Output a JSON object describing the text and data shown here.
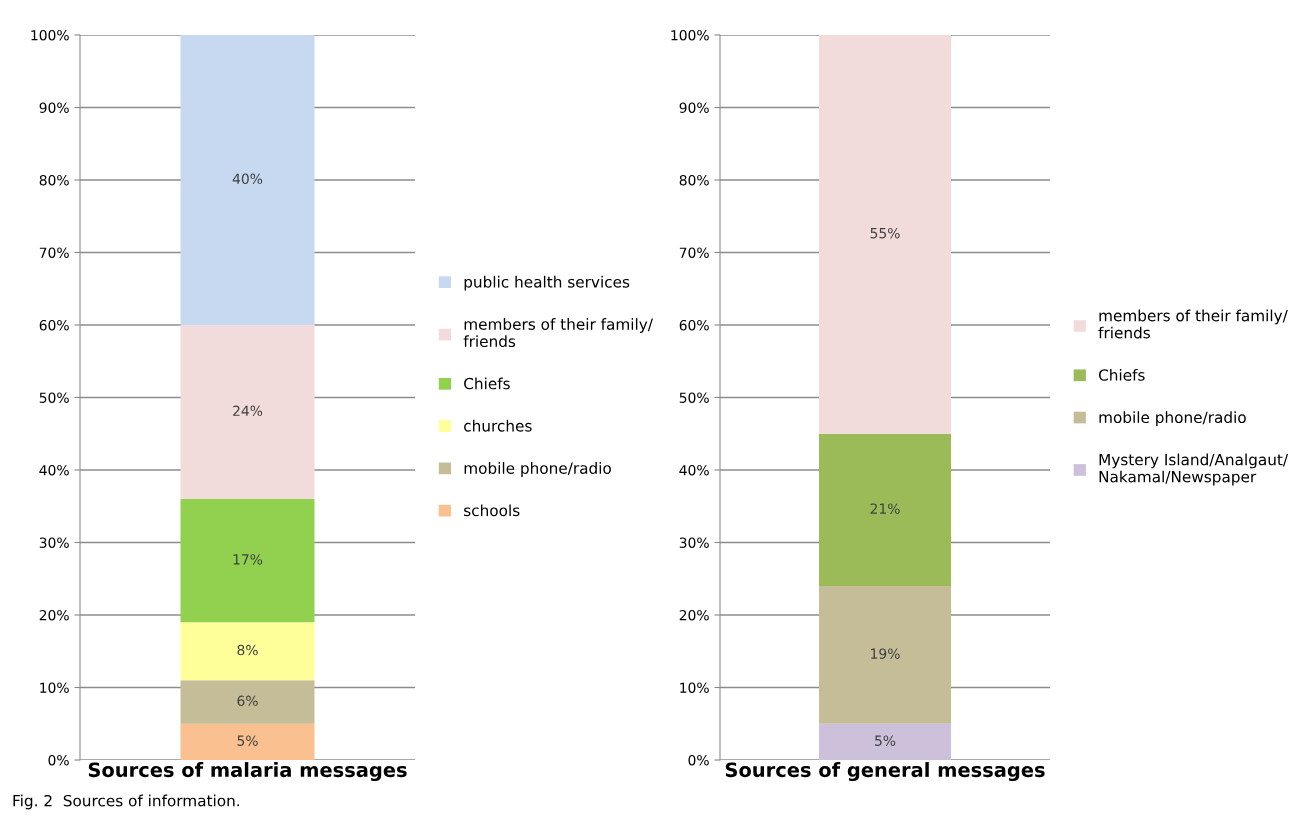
{
  "chart_data": [
    {
      "type": "bar",
      "stacked": true,
      "categories": [
        null
      ],
      "xlabel": "Sources of malaria messages",
      "ylim": [
        0,
        100
      ],
      "yticks": [
        {
          "value": 0,
          "label": "0%"
        },
        {
          "value": 10,
          "label": "10%"
        },
        {
          "value": 20,
          "label": "20%"
        },
        {
          "value": 30,
          "label": "30%"
        },
        {
          "value": 40,
          "label": "40%"
        },
        {
          "value": 50,
          "label": "50%"
        },
        {
          "value": 60,
          "label": "60%"
        },
        {
          "value": 70,
          "label": "70%"
        },
        {
          "value": 80,
          "label": "80%"
        },
        {
          "value": 90,
          "label": "90%"
        },
        {
          "value": 100,
          "label": "100%"
        }
      ],
      "grid": "y",
      "legend": "right",
      "series": [
        {
          "name": "schools",
          "color": "#fac090",
          "values": [
            5
          ],
          "value_labels": [
            "5%"
          ]
        },
        {
          "name": "mobile phone/radio",
          "color": "#c4bd97",
          "values": [
            6
          ],
          "value_labels": [
            "6%"
          ]
        },
        {
          "name": "churches",
          "color": "#ffff99",
          "values": [
            8
          ],
          "value_labels": [
            "8%"
          ]
        },
        {
          "name": "Chiefs",
          "color": "#92d050",
          "values": [
            17
          ],
          "value_labels": [
            "17%"
          ]
        },
        {
          "name": "members of their family/ friends",
          "color": "#f2dcdb",
          "values": [
            24
          ],
          "value_labels": [
            "24%"
          ]
        },
        {
          "name": "public health services",
          "color": "#c6d9f1",
          "values": [
            40
          ],
          "value_labels": [
            "40%"
          ]
        }
      ],
      "annotations": [
        "Fig. 2  Sources of information."
      ]
    },
    {
      "type": "bar",
      "stacked": true,
      "categories": [
        null
      ],
      "xlabel": "Sources of general messages",
      "ylim": [
        0,
        100
      ],
      "yticks": [
        {
          "value": 0,
          "label": "0%"
        },
        {
          "value": 10,
          "label": "10%"
        },
        {
          "value": 20,
          "label": "20%"
        },
        {
          "value": 30,
          "label": "30%"
        },
        {
          "value": 40,
          "label": "40%"
        },
        {
          "value": 50,
          "label": "50%"
        },
        {
          "value": 60,
          "label": "60%"
        },
        {
          "value": 70,
          "label": "70%"
        },
        {
          "value": 80,
          "label": "80%"
        },
        {
          "value": 90,
          "label": "90%"
        },
        {
          "value": 100,
          "label": "100%"
        }
      ],
      "grid": "y",
      "legend": "right",
      "series": [
        {
          "name": "Mystery Island/Analgaut/Nakamal/Newspaper",
          "color": "#ccc0da",
          "values": [
            5
          ],
          "value_labels": [
            "5%"
          ]
        },
        {
          "name": "mobile phone/radio",
          "color": "#c4bd97",
          "values": [
            19
          ],
          "value_labels": [
            "19%"
          ]
        },
        {
          "name": "Chiefs",
          "color": "#9bbb59",
          "values": [
            21
          ],
          "value_labels": [
            "21%"
          ]
        },
        {
          "name": "members of their family/ friends",
          "color": "#f2dcdb",
          "values": [
            55
          ],
          "value_labels": [
            "55%"
          ]
        }
      ]
    }
  ]
}
